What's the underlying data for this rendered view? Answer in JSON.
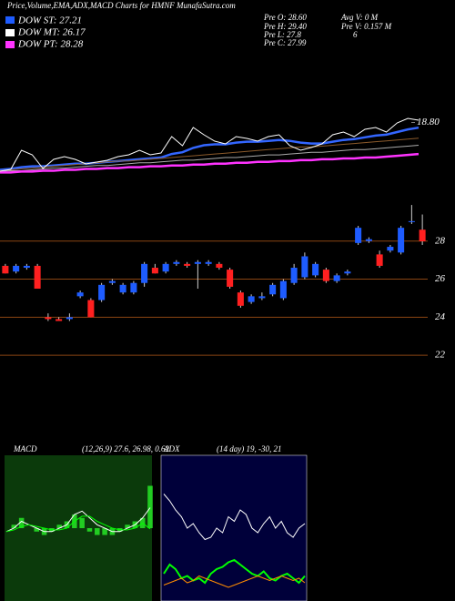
{
  "header": {
    "title": "Price,Volume,EMA,ADX,MACD Charts for HMNF MunafaSutra.com",
    "legend": [
      "DOW ST: 27.21",
      "DOW MT: 26.17",
      "DOW PT: 28.28"
    ],
    "info": [
      "Pre  O: 28.60",
      "Pre  H: 29.40",
      "Pre  L: 27.8",
      "Pre  C: 27.99",
      "Avg V: 0  M",
      "Pre  V: 0.157 M",
      "6"
    ]
  },
  "chart_data": [
    {
      "type": "line",
      "ylim": [
        12,
        26
      ],
      "yticks": [
        {
          "value": 18.8,
          "label": "18.80"
        }
      ],
      "grid": false,
      "series": [
        {
          "color": "#3366ff",
          "width": 2.5,
          "values": [
            13.4,
            13.5,
            13.7,
            13.8,
            13.8,
            13.9,
            14.0,
            14.1,
            14.1,
            14.2,
            14.3,
            14.4,
            14.5,
            14.6,
            14.7,
            14.8,
            15.2,
            15.4,
            15.9,
            16.2,
            16.3,
            16.3,
            16.5,
            16.6,
            16.6,
            16.7,
            16.8,
            16.7,
            16.5,
            16.4,
            16.4,
            16.6,
            16.8,
            16.9,
            17.1,
            17.3,
            17.4,
            17.7,
            18.0,
            18.2
          ]
        },
        {
          "color": "#8b5a2b",
          "width": 1,
          "values": [
            13.3,
            13.4,
            13.5,
            13.6,
            13.7,
            13.8,
            13.9,
            14.0,
            14.1,
            14.2,
            14.3,
            14.4,
            14.4,
            14.5,
            14.6,
            14.7,
            14.8,
            14.9,
            15.0,
            15.1,
            15.2,
            15.3,
            15.4,
            15.5,
            15.6,
            15.7,
            15.8,
            15.9,
            16.0,
            16.0,
            16.1,
            16.2,
            16.3,
            16.4,
            16.5,
            16.6,
            16.7,
            16.8,
            16.9,
            17.0
          ]
        },
        {
          "color": "#aaaaaa",
          "width": 1,
          "values": [
            13.2,
            13.3,
            13.3,
            13.4,
            13.5,
            13.6,
            13.6,
            13.7,
            13.8,
            13.9,
            13.9,
            14.0,
            14.1,
            14.2,
            14.2,
            14.3,
            14.4,
            14.5,
            14.5,
            14.6,
            14.7,
            14.8,
            14.8,
            14.9,
            15.0,
            15.1,
            15.1,
            15.2,
            15.3,
            15.4,
            15.4,
            15.5,
            15.6,
            15.7,
            15.7,
            15.8,
            15.9,
            16.0,
            16.1,
            16.2
          ]
        },
        {
          "color": "#ff33ff",
          "width": 2.5,
          "values": [
            13.1,
            13.1,
            13.2,
            13.2,
            13.3,
            13.3,
            13.4,
            13.4,
            13.5,
            13.5,
            13.6,
            13.6,
            13.7,
            13.7,
            13.8,
            13.8,
            13.9,
            13.9,
            14.0,
            14.0,
            14.1,
            14.1,
            14.2,
            14.2,
            14.3,
            14.3,
            14.4,
            14.4,
            14.5,
            14.5,
            14.6,
            14.6,
            14.7,
            14.7,
            14.8,
            14.8,
            14.9,
            15.0,
            15.1,
            15.2
          ]
        },
        {
          "color": "#ffffff",
          "width": 1,
          "values": [
            13.24,
            13.45,
            15.63,
            15.11,
            13.56,
            14.59,
            14.9,
            14.59,
            14.07,
            14.28,
            14.49,
            14.9,
            15.11,
            15.63,
            15.11,
            15.32,
            17.19,
            16.15,
            18.22,
            17.39,
            16.67,
            16.36,
            17.19,
            16.98,
            16.67,
            17.19,
            17.39,
            16.15,
            15.63,
            15.94,
            16.36,
            17.39,
            17.7,
            17.19,
            18.01,
            18.22,
            17.7,
            18.74,
            19.26,
            19.05
          ]
        }
      ]
    },
    {
      "type": "candlestick",
      "ylim": [
        21,
        30
      ],
      "yticks": [
        22,
        24,
        26,
        28
      ],
      "grid": true,
      "up_color": "#1e5cff",
      "down_color": "#ff2020",
      "candles": [
        {
          "open": 26.7,
          "high": 26.8,
          "low": 26.3,
          "close": 26.3
        },
        {
          "open": 26.4,
          "high": 26.8,
          "low": 26.3,
          "close": 26.7
        },
        {
          "open": 26.6,
          "high": 26.8,
          "low": 26.5,
          "close": 26.7
        },
        {
          "open": 26.7,
          "high": 26.8,
          "low": 25.5,
          "close": 25.5
        },
        {
          "open": 24.0,
          "high": 24.2,
          "low": 23.8,
          "close": 23.9
        },
        {
          "open": 23.9,
          "high": 24.0,
          "low": 23.8,
          "close": 23.8
        },
        {
          "open": 23.9,
          "high": 24.2,
          "low": 23.8,
          "close": 24.0
        },
        {
          "open": 25.1,
          "high": 25.4,
          "low": 25.0,
          "close": 25.3
        },
        {
          "open": 24.9,
          "high": 25.0,
          "low": 24.0,
          "close": 24.0
        },
        {
          "open": 24.9,
          "high": 25.8,
          "low": 24.8,
          "close": 25.7
        },
        {
          "open": 25.8,
          "high": 26.0,
          "low": 25.7,
          "close": 25.9
        },
        {
          "open": 25.3,
          "high": 25.8,
          "low": 25.2,
          "close": 25.7
        },
        {
          "open": 25.3,
          "high": 25.9,
          "low": 25.2,
          "close": 25.8
        },
        {
          "open": 25.8,
          "high": 26.9,
          "low": 25.6,
          "close": 26.8
        },
        {
          "open": 26.6,
          "high": 26.8,
          "low": 26.3,
          "close": 26.3
        },
        {
          "open": 26.4,
          "high": 26.9,
          "low": 26.3,
          "close": 26.8
        },
        {
          "open": 26.8,
          "high": 27.0,
          "low": 26.7,
          "close": 26.9
        },
        {
          "open": 26.8,
          "high": 26.9,
          "low": 26.6,
          "close": 26.7
        },
        {
          "open": 26.8,
          "high": 27.0,
          "low": 25.5,
          "close": 26.9
        },
        {
          "open": 26.8,
          "high": 27.0,
          "low": 26.7,
          "close": 26.9
        },
        {
          "open": 26.8,
          "high": 26.9,
          "low": 26.5,
          "close": 26.6
        },
        {
          "open": 26.5,
          "high": 26.6,
          "low": 25.5,
          "close": 25.6
        },
        {
          "open": 25.3,
          "high": 25.4,
          "low": 24.5,
          "close": 24.6
        },
        {
          "open": 24.8,
          "high": 25.2,
          "low": 24.7,
          "close": 25.1
        },
        {
          "open": 25.0,
          "high": 25.3,
          "low": 24.9,
          "close": 25.1
        },
        {
          "open": 25.2,
          "high": 25.8,
          "low": 25.1,
          "close": 25.7
        },
        {
          "open": 25.0,
          "high": 26.0,
          "low": 24.9,
          "close": 25.9
        },
        {
          "open": 25.8,
          "high": 26.8,
          "low": 25.7,
          "close": 26.6
        },
        {
          "open": 26.1,
          "high": 27.4,
          "low": 26.0,
          "close": 27.2
        },
        {
          "open": 26.2,
          "high": 26.9,
          "low": 26.1,
          "close": 26.8
        },
        {
          "open": 26.5,
          "high": 26.6,
          "low": 25.8,
          "close": 25.9
        },
        {
          "open": 25.9,
          "high": 26.3,
          "low": 25.8,
          "close": 26.2
        },
        {
          "open": 26.3,
          "high": 26.5,
          "low": 26.2,
          "close": 26.4
        },
        {
          "open": 27.9,
          "high": 28.8,
          "low": 27.8,
          "close": 28.7
        },
        {
          "open": 28.0,
          "high": 28.2,
          "low": 27.9,
          "close": 28.1
        },
        {
          "open": 27.3,
          "high": 27.5,
          "low": 26.6,
          "close": 26.7
        },
        {
          "open": 27.5,
          "high": 27.8,
          "low": 27.4,
          "close": 27.7
        },
        {
          "open": 27.4,
          "high": 28.8,
          "low": 27.3,
          "close": 28.7
        },
        {
          "open": 29.0,
          "high": 29.9,
          "low": 28.9,
          "close": 29.05
        },
        {
          "open": 28.6,
          "high": 29.4,
          "low": 27.8,
          "close": 27.99
        }
      ]
    },
    {
      "type": "line",
      "title": "MACD",
      "subtitle": "(12,26,9) 27.6, 26.98, 0.62",
      "ylim": [
        25,
        29
      ],
      "y2lim": [
        -1,
        1
      ],
      "series": [
        {
          "type": "bar",
          "axis": "y2",
          "color": "#22cc22",
          "values": [
            0,
            0.05,
            0.15,
            0,
            -0.05,
            -0.1,
            -0.05,
            0.05,
            0.1,
            0.2,
            0.15,
            -0.05,
            -0.1,
            -0.1,
            -0.1,
            -0.05,
            0.05,
            0.1,
            0.15,
            0.62
          ]
        },
        {
          "color": "#ffffff",
          "width": 1,
          "values": [
            26.9,
            27.0,
            27.2,
            27.1,
            27.0,
            26.9,
            26.9,
            27.0,
            27.1,
            27.4,
            27.5,
            27.3,
            27.1,
            27.0,
            26.9,
            26.9,
            27.0,
            27.1,
            27.3,
            27.6
          ]
        },
        {
          "color": "#00ff00",
          "width": 1,
          "values": [
            26.9,
            26.95,
            27.05,
            27.1,
            27.05,
            27.0,
            26.95,
            26.95,
            27.0,
            27.2,
            27.35,
            27.35,
            27.2,
            27.1,
            27.0,
            26.95,
            26.95,
            27.0,
            27.15,
            26.98
          ]
        }
      ]
    },
    {
      "type": "line",
      "title": "ADX",
      "subtitle": "(14 day) 19, -30, 21",
      "ylim": [
        0,
        60
      ],
      "series": [
        {
          "color": "#ffffff",
          "width": 1,
          "values": [
            45,
            42,
            38,
            35,
            30,
            32,
            28,
            25,
            26,
            30,
            28,
            35,
            33,
            38,
            36,
            30,
            28,
            32,
            35,
            30,
            33,
            28,
            26,
            30,
            32
          ]
        },
        {
          "color": "#00ff00",
          "width": 2,
          "values": [
            10,
            14,
            12,
            8,
            9,
            7,
            8,
            6,
            10,
            12,
            13,
            15,
            16,
            14,
            12,
            10,
            9,
            11,
            8,
            7,
            9,
            10,
            8,
            6,
            9
          ]
        },
        {
          "color": "#ff8c00",
          "width": 1,
          "values": [
            5,
            6,
            7,
            8,
            6,
            7,
            9,
            8,
            7,
            6,
            5,
            4,
            5,
            6,
            7,
            8,
            9,
            8,
            7,
            8,
            9,
            8,
            7,
            8,
            6
          ]
        }
      ]
    }
  ]
}
